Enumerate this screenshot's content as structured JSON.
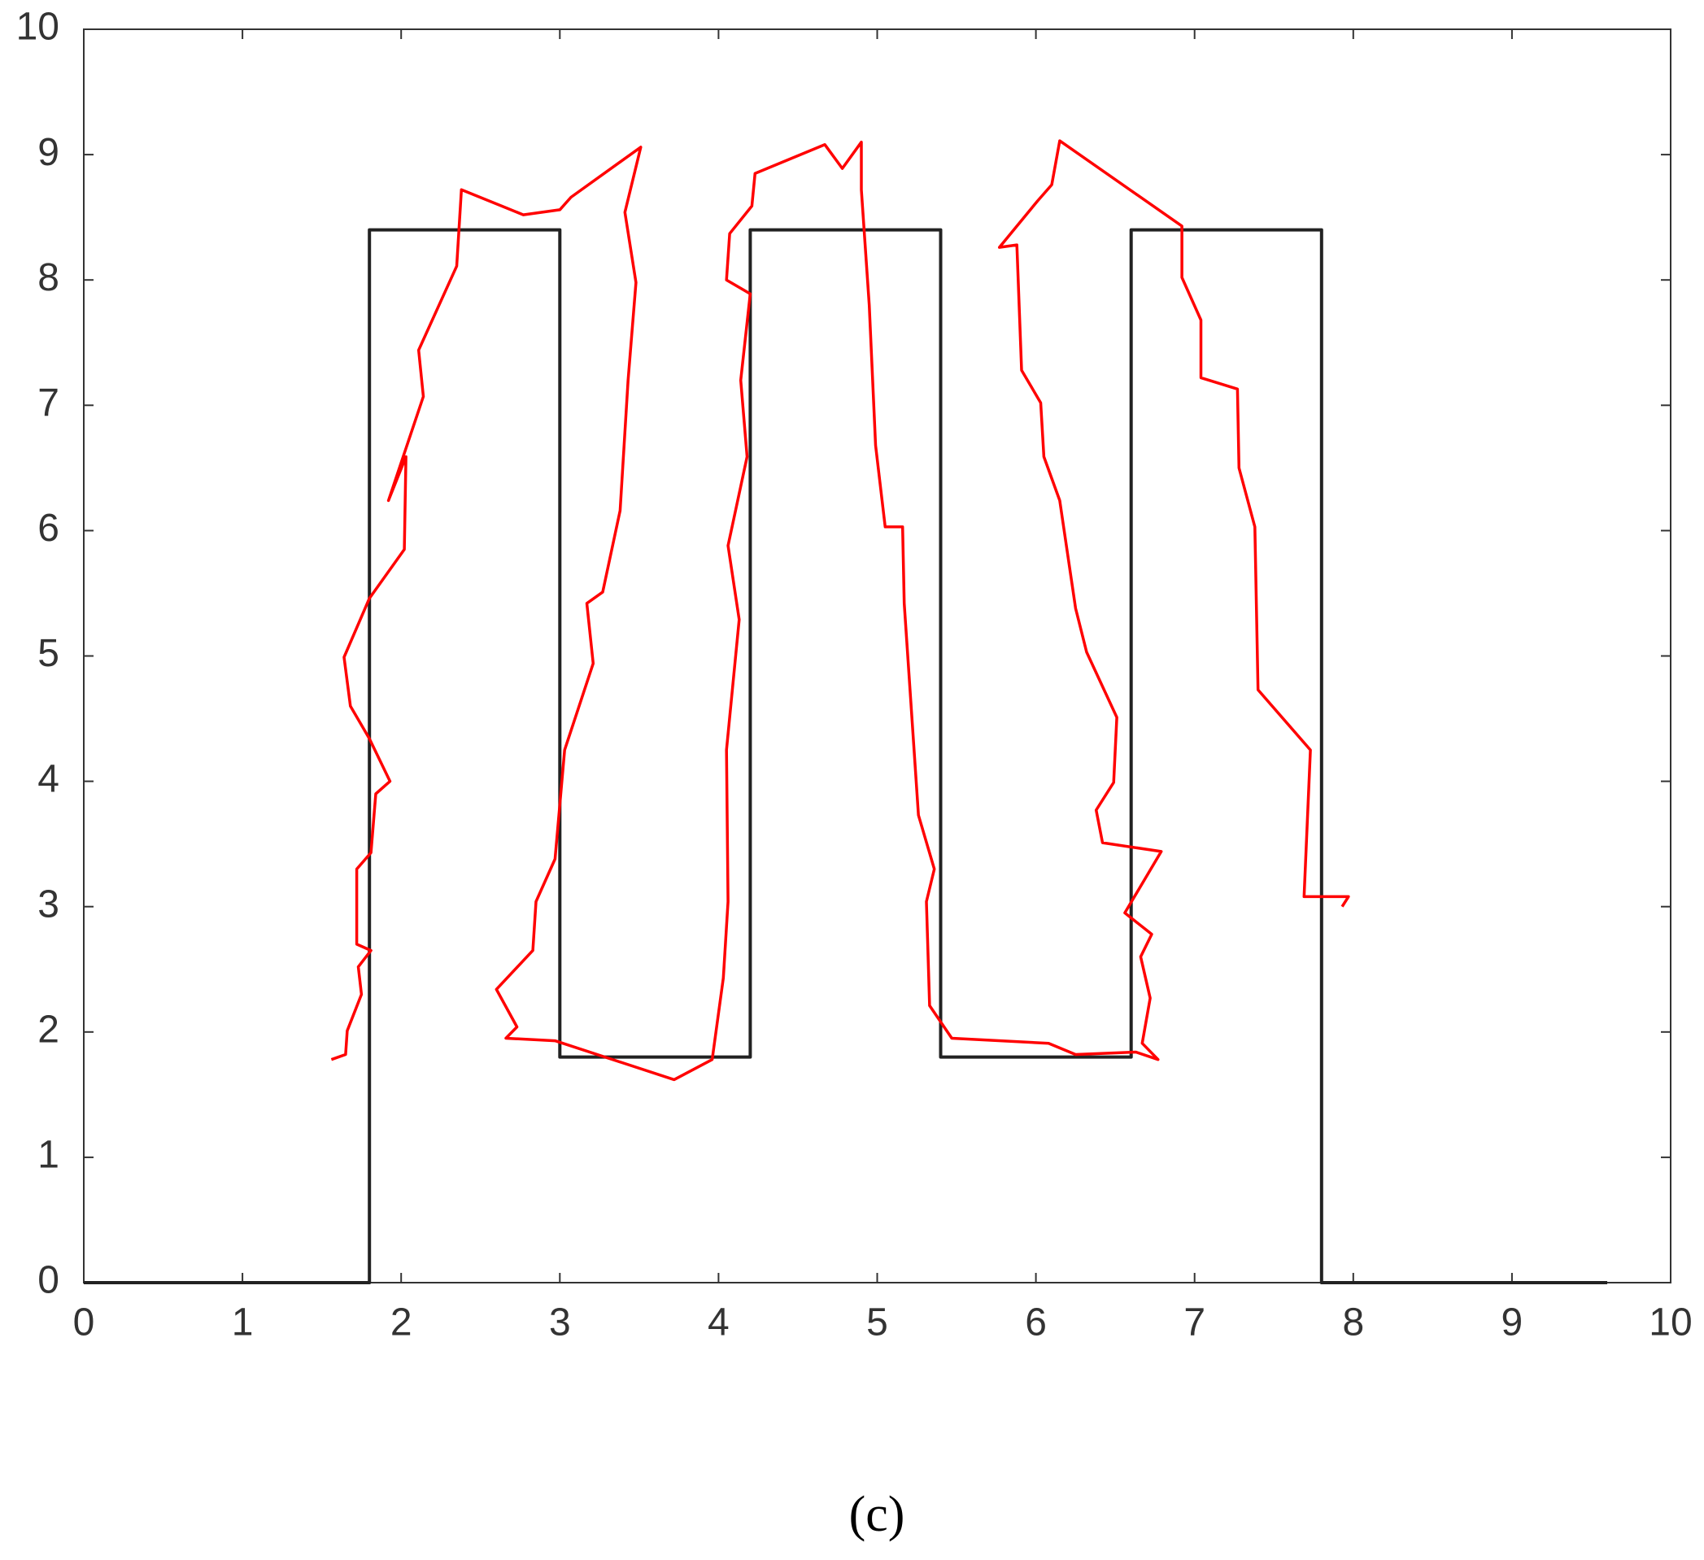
{
  "chart_data": {
    "type": "line",
    "caption": "(c)",
    "xlim": [
      0,
      10
    ],
    "xticks": [
      0,
      1,
      2,
      3,
      4,
      5,
      6,
      7,
      8,
      9,
      10
    ],
    "ylim": [
      0,
      10
    ],
    "yticks": [
      0,
      1,
      2,
      3,
      4,
      5,
      6,
      7,
      8,
      9,
      10
    ],
    "series": [
      {
        "color": "#222222",
        "x": [
          0,
          1.8,
          1.8,
          3,
          3,
          4.2,
          4.2,
          5.4,
          5.4,
          6.6,
          6.6,
          7.8,
          7.8,
          9.6
        ],
        "values": [
          0,
          0,
          8.4,
          8.4,
          1.8,
          1.8,
          8.4,
          8.4,
          1.8,
          1.8,
          8.4,
          8.4,
          0,
          0
        ]
      },
      {
        "color": "#ff0000",
        "x": [
          1.56,
          1.65,
          1.66,
          1.75,
          1.73,
          1.81,
          1.72,
          1.72,
          1.81,
          1.84,
          1.93,
          1.8,
          1.68,
          1.64,
          1.8,
          2.02,
          2.03,
          1.92,
          2.14,
          2.11,
          2.35,
          2.38,
          2.77,
          3,
          3.07,
          3.51,
          3.41,
          3.48,
          3.43,
          3.38,
          3.27,
          3.17,
          3.21,
          3.03,
          2.97,
          2.85,
          2.83,
          2.6,
          2.73,
          2.66,
          2.97,
          3.72,
          3.96,
          4.03,
          4.06,
          4.05,
          4.13,
          4.06,
          4.18,
          4.14,
          4.2,
          4.05,
          4.07,
          4.21,
          4.23,
          4.67,
          4.78,
          4.9,
          4.9,
          4.95,
          4.99,
          5.05,
          5.16,
          5.17,
          5.23,
          5.26,
          5.36,
          5.31,
          5.33,
          5.47,
          6.08,
          6.25,
          6.63,
          6.77,
          6.67,
          6.72,
          6.66,
          6.73,
          6.56,
          6.79,
          6.42,
          6.38,
          6.49,
          6.51,
          6.32,
          6.25,
          6.15,
          6.05,
          6.03,
          5.91,
          5.88,
          5.77,
          6.01,
          6.1,
          6.15,
          6.92,
          6.92,
          7.04,
          7.04,
          7.27,
          7.28,
          7.38,
          7.4,
          7.73,
          7.69,
          7.97,
          7.93
        ],
        "values": [
          1.78,
          1.82,
          2.01,
          2.3,
          2.52,
          2.65,
          2.7,
          3.3,
          3.43,
          3.9,
          4.0,
          4.34,
          4.6,
          4.99,
          5.46,
          5.85,
          6.59,
          6.24,
          7.07,
          7.44,
          8.11,
          8.72,
          8.52,
          8.56,
          8.66,
          9.06,
          8.54,
          7.98,
          7.2,
          6.16,
          5.51,
          5.42,
          4.94,
          4.25,
          3.38,
          3.04,
          2.65,
          2.34,
          2.04,
          1.95,
          1.93,
          1.62,
          1.78,
          2.43,
          3.04,
          4.25,
          5.29,
          5.88,
          6.59,
          7.2,
          7.89,
          8.0,
          8.37,
          8.59,
          8.85,
          9.08,
          8.89,
          9.1,
          8.72,
          7.8,
          6.68,
          6.03,
          6.03,
          5.42,
          4.29,
          3.73,
          3.3,
          3.04,
          2.21,
          1.95,
          1.91,
          1.82,
          1.84,
          1.78,
          1.91,
          2.27,
          2.6,
          2.78,
          2.95,
          3.44,
          3.51,
          3.77,
          3.99,
          4.51,
          5.03,
          5.38,
          6.24,
          6.59,
          7.02,
          7.28,
          8.28,
          8.26,
          8.63,
          8.76,
          9.11,
          8.43,
          8.02,
          7.68,
          7.22,
          7.13,
          6.5,
          6.03,
          4.73,
          4.25,
          3.08,
          3.08,
          3.0
        ]
      }
    ]
  }
}
